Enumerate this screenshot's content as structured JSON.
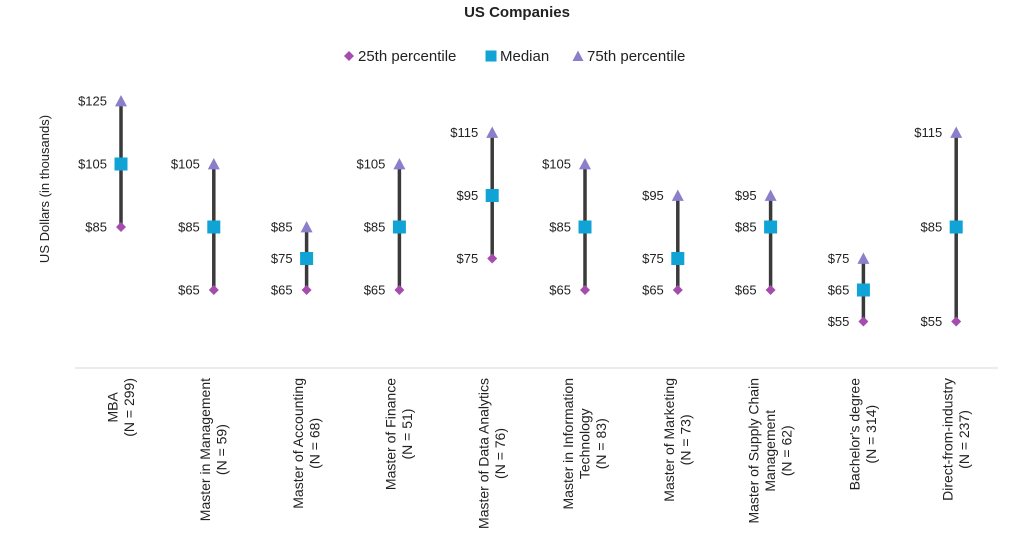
{
  "chart_data": {
    "type": "range",
    "title": "US Companies",
    "ylabel": "US Dollars (in thousands)",
    "ylim": [
      45,
      128
    ],
    "grid": false,
    "legend_position": "top",
    "legend": [
      {
        "name": "25th percentile",
        "marker": "diamond",
        "color": "#A64CAE"
      },
      {
        "name": "Median",
        "marker": "square",
        "color": "#0FA3D6"
      },
      {
        "name": "75th percentile",
        "marker": "triangle",
        "color": "#8B7FCB"
      }
    ],
    "line_color": "#3A3A3A",
    "categories": [
      {
        "lines": [
          "MBA",
          "(N = 299)"
        ]
      },
      {
        "lines": [
          "Master in Management",
          "(N = 59)"
        ]
      },
      {
        "lines": [
          "Master of Accounting",
          "(N = 68)"
        ]
      },
      {
        "lines": [
          "Master of Finance",
          "(N = 51)"
        ]
      },
      {
        "lines": [
          "Master of Data Analytics",
          "(N = 76)"
        ]
      },
      {
        "lines": [
          "Master in Information",
          "Technology",
          "(N = 83)"
        ]
      },
      {
        "lines": [
          "Master of Marketing",
          "(N = 73)"
        ]
      },
      {
        "lines": [
          "Master of Supply Chain",
          "Management",
          "(N = 62)"
        ]
      },
      {
        "lines": [
          "Bachelor's degree",
          "(N = 314)"
        ]
      },
      {
        "lines": [
          "Direct-from-industry",
          "(N = 237)"
        ]
      }
    ],
    "series": [
      {
        "name": "25th percentile",
        "values": [
          85,
          65,
          65,
          65,
          75,
          65,
          65,
          65,
          55,
          55
        ]
      },
      {
        "name": "Median",
        "values": [
          105,
          85,
          75,
          85,
          95,
          85,
          75,
          85,
          65,
          85
        ]
      },
      {
        "name": "75th percentile",
        "values": [
          125,
          105,
          85,
          105,
          115,
          105,
          95,
          95,
          75,
          115
        ]
      }
    ],
    "value_prefix": "$"
  }
}
